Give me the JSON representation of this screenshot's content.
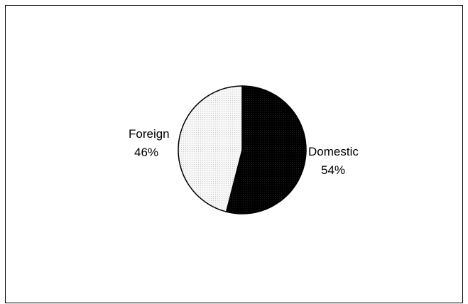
{
  "chart_data": {
    "type": "pie",
    "categories": [
      "Domestic",
      "Foreign"
    ],
    "values": [
      54,
      46
    ],
    "value_labels": [
      "54%",
      "46%"
    ],
    "colors": [
      "#000000",
      "#f2f2f2"
    ],
    "start_angle_deg": 0,
    "direction": "clockwise",
    "legend": "none"
  }
}
